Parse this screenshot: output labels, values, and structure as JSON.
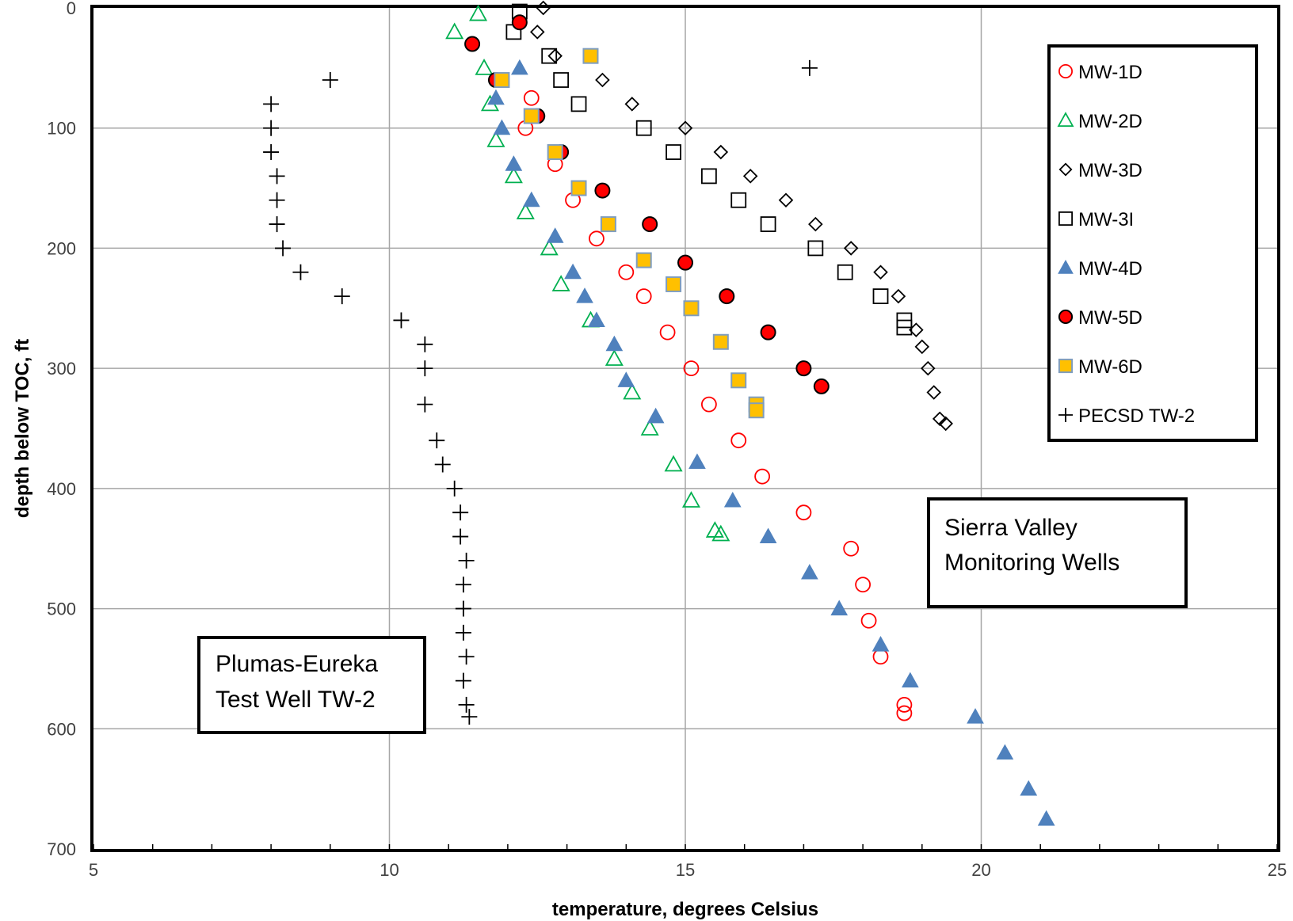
{
  "chart_data": {
    "type": "scatter",
    "title": "",
    "xlabel": "temperature, degrees Celsius",
    "ylabel": "depth below TOC, ft",
    "xlim": [
      5,
      25
    ],
    "ylim": [
      0,
      700
    ],
    "y_inverted": true,
    "x_ticks": [
      5,
      10,
      15,
      20,
      25
    ],
    "y_ticks": [
      0,
      100,
      200,
      300,
      400,
      500,
      600,
      700
    ],
    "grid": true,
    "legend_position": "top-right",
    "annotations": [
      {
        "id": "sierra",
        "lines": [
          "Sierra Valley",
          "Monitoring Wells"
        ]
      },
      {
        "id": "plumas",
        "lines": [
          "Plumas-Eureka",
          "Test Well TW-2"
        ]
      }
    ],
    "series": [
      {
        "name": "MW-1D",
        "marker": "circle-open",
        "color": "#ff0000",
        "points": [
          [
            12.4,
            75
          ],
          [
            12.3,
            100
          ],
          [
            12.8,
            130
          ],
          [
            13.1,
            160
          ],
          [
            13.5,
            192
          ],
          [
            14.0,
            220
          ],
          [
            14.3,
            240
          ],
          [
            14.7,
            270
          ],
          [
            15.1,
            300
          ],
          [
            15.4,
            330
          ],
          [
            15.9,
            360
          ],
          [
            16.3,
            390
          ],
          [
            17.0,
            420
          ],
          [
            17.8,
            450
          ],
          [
            18.0,
            480
          ],
          [
            18.1,
            510
          ],
          [
            18.3,
            540
          ],
          [
            18.7,
            580
          ],
          [
            18.7,
            587
          ]
        ]
      },
      {
        "name": "MW-2D",
        "marker": "triangle-open",
        "color": "#00b050",
        "points": [
          [
            11.5,
            5
          ],
          [
            11.1,
            20
          ],
          [
            11.6,
            50
          ],
          [
            11.7,
            80
          ],
          [
            11.8,
            110
          ],
          [
            12.1,
            140
          ],
          [
            12.3,
            170
          ],
          [
            12.7,
            200
          ],
          [
            12.9,
            230
          ],
          [
            13.4,
            260
          ],
          [
            13.8,
            292
          ],
          [
            14.1,
            320
          ],
          [
            14.4,
            350
          ],
          [
            14.8,
            380
          ],
          [
            15.1,
            410
          ],
          [
            15.5,
            435
          ],
          [
            15.6,
            438
          ]
        ]
      },
      {
        "name": "MW-3D",
        "marker": "diamond-open",
        "color": "#000000",
        "points": [
          [
            12.6,
            0
          ],
          [
            12.5,
            20
          ],
          [
            12.8,
            40
          ],
          [
            13.6,
            60
          ],
          [
            14.1,
            80
          ],
          [
            15.0,
            100
          ],
          [
            15.6,
            120
          ],
          [
            16.1,
            140
          ],
          [
            16.7,
            160
          ],
          [
            17.2,
            180
          ],
          [
            17.8,
            200
          ],
          [
            18.3,
            220
          ],
          [
            18.6,
            240
          ],
          [
            18.9,
            268
          ],
          [
            19.0,
            282
          ],
          [
            19.1,
            300
          ],
          [
            19.2,
            320
          ],
          [
            19.3,
            342
          ],
          [
            19.4,
            346
          ]
        ]
      },
      {
        "name": "MW-3I",
        "marker": "square-open",
        "color": "#000000",
        "points": [
          [
            12.2,
            3
          ],
          [
            12.1,
            20
          ],
          [
            12.7,
            40
          ],
          [
            12.9,
            60
          ],
          [
            13.2,
            80
          ],
          [
            14.3,
            100
          ],
          [
            14.8,
            120
          ],
          [
            15.4,
            140
          ],
          [
            15.9,
            160
          ],
          [
            16.4,
            180
          ],
          [
            17.2,
            200
          ],
          [
            17.7,
            220
          ],
          [
            18.3,
            240
          ],
          [
            18.7,
            260
          ],
          [
            18.7,
            266
          ]
        ]
      },
      {
        "name": "MW-4D",
        "marker": "triangle-filled",
        "color": "#4f81bd",
        "points": [
          [
            12.2,
            50
          ],
          [
            11.8,
            75
          ],
          [
            11.9,
            100
          ],
          [
            12.1,
            130
          ],
          [
            12.4,
            160
          ],
          [
            12.8,
            190
          ],
          [
            13.1,
            220
          ],
          [
            13.3,
            240
          ],
          [
            13.5,
            260
          ],
          [
            13.8,
            280
          ],
          [
            14.0,
            310
          ],
          [
            14.5,
            340
          ],
          [
            15.2,
            378
          ],
          [
            15.8,
            410
          ],
          [
            16.4,
            440
          ],
          [
            17.1,
            470
          ],
          [
            17.6,
            500
          ],
          [
            18.3,
            530
          ],
          [
            18.8,
            560
          ],
          [
            19.9,
            590
          ],
          [
            20.4,
            620
          ],
          [
            20.8,
            650
          ],
          [
            21.1,
            675
          ]
        ]
      },
      {
        "name": "MW-5D",
        "marker": "circle-filled",
        "color": "#ff0000",
        "points": [
          [
            12.2,
            12
          ],
          [
            11.4,
            30
          ],
          [
            11.8,
            60
          ],
          [
            12.5,
            90
          ],
          [
            12.9,
            120
          ],
          [
            13.6,
            152
          ],
          [
            14.4,
            180
          ],
          [
            15.0,
            212
          ],
          [
            15.7,
            240
          ],
          [
            16.4,
            270
          ],
          [
            17.0,
            300
          ],
          [
            17.3,
            315
          ]
        ]
      },
      {
        "name": "MW-6D",
        "marker": "square-filled",
        "color": "#ffc000",
        "points": [
          [
            13.4,
            40
          ],
          [
            11.9,
            60
          ],
          [
            12.4,
            90
          ],
          [
            12.8,
            120
          ],
          [
            13.2,
            150
          ],
          [
            13.7,
            180
          ],
          [
            14.3,
            210
          ],
          [
            14.8,
            230
          ],
          [
            15.1,
            250
          ],
          [
            15.6,
            278
          ],
          [
            15.9,
            310
          ],
          [
            16.2,
            330
          ],
          [
            16.2,
            335
          ]
        ]
      },
      {
        "name": "PECSD TW-2",
        "marker": "plus",
        "color": "#000000",
        "points": [
          [
            17.1,
            50
          ],
          [
            9.0,
            60
          ],
          [
            8.0,
            80
          ],
          [
            8.0,
            100
          ],
          [
            8.0,
            120
          ],
          [
            8.1,
            140
          ],
          [
            8.1,
            160
          ],
          [
            8.1,
            180
          ],
          [
            8.2,
            200
          ],
          [
            8.5,
            220
          ],
          [
            9.2,
            240
          ],
          [
            10.2,
            260
          ],
          [
            10.6,
            280
          ],
          [
            10.6,
            300
          ],
          [
            10.6,
            330
          ],
          [
            10.8,
            360
          ],
          [
            10.9,
            380
          ],
          [
            11.1,
            400
          ],
          [
            11.2,
            420
          ],
          [
            11.2,
            440
          ],
          [
            11.3,
            460
          ],
          [
            11.25,
            480
          ],
          [
            11.25,
            500
          ],
          [
            11.25,
            520
          ],
          [
            11.3,
            540
          ],
          [
            11.25,
            560
          ],
          [
            11.3,
            580
          ],
          [
            11.35,
            590
          ]
        ]
      }
    ]
  }
}
